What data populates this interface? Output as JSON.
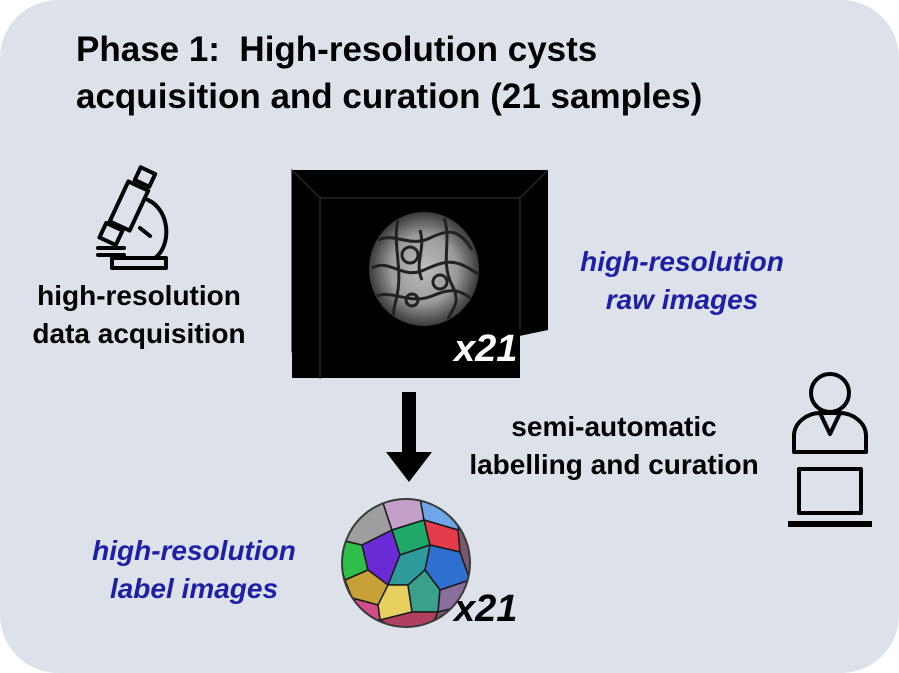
{
  "title": {
    "line1": "Phase 1:  High-resolution cysts",
    "line2": "acquisition and curation (21 samples)"
  },
  "acquisition": {
    "icon": "microscope-icon",
    "line1": "high-resolution",
    "line2": "data acquisition"
  },
  "raw_images": {
    "line1": "high-resolution",
    "line2": "raw images",
    "count": "x21"
  },
  "labelling": {
    "icon": "user-at-laptop-icon",
    "line1": "semi-automatic",
    "line2": "labelling and curation"
  },
  "label_images": {
    "line1": "high-resolution",
    "line2": "label images",
    "count": "x21"
  },
  "colors": {
    "panel": "#dde2ea",
    "accent_text": "#1f1fa6"
  }
}
